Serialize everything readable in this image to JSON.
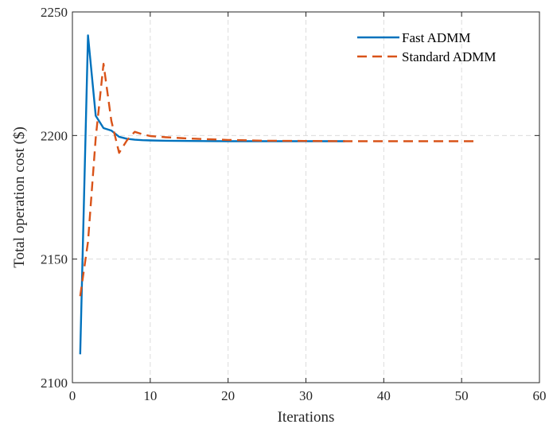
{
  "chart_data": {
    "type": "line",
    "title": "",
    "xlabel": "Iterations",
    "ylabel": "Total operation cost ($)",
    "xlim": [
      0,
      60
    ],
    "ylim": [
      2100,
      2250
    ],
    "xticks": [
      0,
      10,
      20,
      30,
      40,
      50,
      60
    ],
    "yticks": [
      2100,
      2150,
      2200,
      2250
    ],
    "xtick_labels": [
      "0",
      "10",
      "20",
      "30",
      "40",
      "50",
      "60"
    ],
    "ytick_labels": [
      "2100",
      "2150",
      "2200",
      "2250"
    ],
    "grid": true,
    "legend_position": "top-right",
    "series": [
      {
        "name": "Fast ADMM",
        "color": "#0072BD",
        "style": "solid",
        "x": [
          1,
          2,
          3,
          4,
          5,
          6,
          7,
          8,
          9,
          10,
          12,
          15,
          20,
          25,
          30,
          35
        ],
        "y": [
          2111.5,
          2240.5,
          2208,
          2203,
          2202,
          2199.5,
          2198.7,
          2198.3,
          2198.1,
          2198.0,
          2197.9,
          2197.8,
          2197.7,
          2197.7,
          2197.7,
          2197.7
        ]
      },
      {
        "name": "Standard ADMM",
        "color": "#D95319",
        "style": "dashed",
        "x": [
          1,
          2,
          3,
          4,
          5,
          6,
          7,
          8,
          9,
          10,
          12,
          15,
          20,
          25,
          30,
          35,
          40,
          45,
          50,
          52
        ],
        "y": [
          2135,
          2157,
          2199,
          2229,
          2206,
          2193,
          2198,
          2201.5,
          2200.5,
          2199.8,
          2199.3,
          2198.8,
          2198.2,
          2197.9,
          2197.8,
          2197.7,
          2197.7,
          2197.7,
          2197.7,
          2197.7
        ]
      }
    ]
  }
}
